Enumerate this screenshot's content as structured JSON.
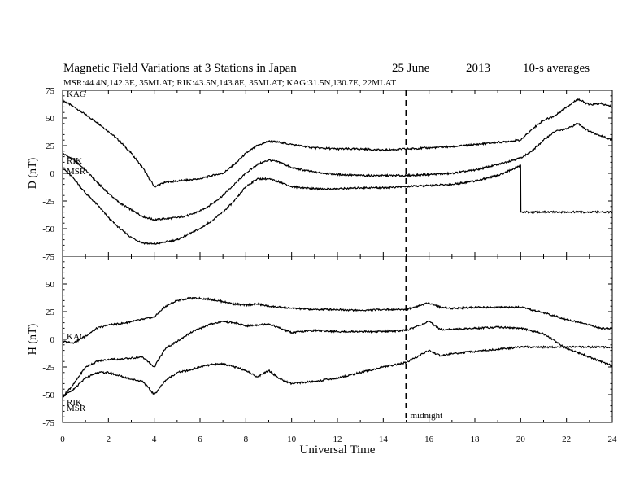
{
  "header": {
    "title": "Magnetic Field Variations at 3 Stations in Japan",
    "date": "25 June",
    "year": "2013",
    "resolution": "10-s averages",
    "station_line": "MSR:44.4N,142.3E, 35MLAT;   RIK:43.5N,143.8E, 35MLAT;   KAG:31.5N,130.7E, 22MLAT"
  },
  "chart_data": [
    {
      "type": "line",
      "panel": "D",
      "ylabel": "D (nT)",
      "ylim": [
        -75,
        75
      ],
      "yticks": [
        "75",
        "50",
        "25",
        "0",
        "-25",
        "-50",
        "-75"
      ],
      "xlim": [
        0,
        24
      ],
      "series": [
        {
          "name": "KAG",
          "x": [
            0,
            0.5,
            1,
            1.5,
            2,
            2.5,
            3,
            3.5,
            4,
            4.5,
            5,
            5.5,
            6,
            6.5,
            7,
            7.5,
            8,
            8.5,
            9,
            9.5,
            10,
            11,
            12,
            13,
            14,
            15,
            16,
            17,
            18,
            19,
            20,
            20.5,
            21,
            21.5,
            22,
            22.5,
            23,
            23.5,
            24
          ],
          "y": [
            66,
            60,
            53,
            46,
            38,
            29,
            18,
            5,
            -12,
            -8,
            -7,
            -6,
            -5,
            -2,
            0,
            8,
            18,
            25,
            29,
            28,
            26,
            23,
            22,
            22,
            21,
            22,
            23,
            24,
            26,
            28,
            30,
            40,
            48,
            52,
            60,
            67,
            62,
            63,
            60
          ]
        },
        {
          "name": "RIK",
          "x": [
            0,
            0.5,
            1,
            1.5,
            2,
            2.5,
            3,
            3.5,
            4,
            4.5,
            5,
            5.5,
            6,
            6.5,
            7,
            7.5,
            8,
            8.5,
            9,
            9.5,
            10,
            11,
            12,
            13,
            14,
            15,
            16,
            17,
            18,
            19,
            20,
            20.5,
            21,
            21.5,
            22,
            22.5,
            23,
            23.5,
            24
          ],
          "y": [
            18,
            12,
            3,
            -8,
            -18,
            -27,
            -33,
            -39,
            -42,
            -41,
            -40,
            -38,
            -34,
            -28,
            -20,
            -10,
            0,
            8,
            12,
            10,
            5,
            1,
            -1,
            -2,
            -2,
            -2,
            -1,
            0,
            3,
            8,
            14,
            20,
            30,
            38,
            40,
            45,
            38,
            34,
            30
          ]
        },
        {
          "name": "MSR",
          "x": [
            0,
            0.5,
            1,
            1.5,
            2,
            2.5,
            3,
            3.5,
            4,
            4.5,
            5,
            5.5,
            6,
            6.5,
            7,
            7.5,
            8,
            8.5,
            9,
            9.5,
            10,
            11,
            12,
            13,
            14,
            15,
            16,
            17,
            18,
            19,
            20,
            20.01,
            24
          ],
          "y": [
            5,
            -5,
            -18,
            -28,
            -40,
            -50,
            -58,
            -63,
            -64,
            -62,
            -60,
            -55,
            -50,
            -43,
            -35,
            -25,
            -12,
            -5,
            -5,
            -8,
            -12,
            -14,
            -14,
            -13,
            -13,
            -12,
            -11,
            -10,
            -7,
            -2,
            7,
            -35,
            -35
          ]
        }
      ]
    },
    {
      "type": "line",
      "panel": "H",
      "ylabel": "H (nT)",
      "ylim": [
        -75,
        75
      ],
      "yticks": [
        "75",
        "50",
        "25",
        "0",
        "-25",
        "-50",
        "-75"
      ],
      "xlim": [
        0,
        24
      ],
      "xlabel": "Universal Time",
      "xticks": [
        "0",
        "2",
        "4",
        "6",
        "8",
        "10",
        "12",
        "14",
        "16",
        "18",
        "20",
        "22",
        "24"
      ],
      "annotation": "midnight",
      "marker_x": 15,
      "series": [
        {
          "name": "KAG",
          "x": [
            0,
            0.5,
            1,
            1.5,
            2,
            2.5,
            3,
            3.5,
            4,
            4.5,
            5,
            5.5,
            6,
            6.5,
            7,
            7.5,
            8,
            8.5,
            9,
            9.5,
            10,
            11,
            12,
            13,
            14,
            15,
            16,
            16.5,
            17,
            18,
            19,
            20,
            21,
            22,
            23,
            23.5,
            24
          ],
          "y": [
            -2,
            -3,
            3,
            10,
            13,
            14,
            16,
            18,
            20,
            30,
            35,
            37,
            37,
            36,
            34,
            32,
            31,
            32,
            30,
            29,
            28,
            27,
            27,
            26,
            27,
            27,
            33,
            29,
            28,
            29,
            29,
            29,
            24,
            18,
            13,
            10,
            10
          ]
        },
        {
          "name": "RIK",
          "x": [
            0,
            0.5,
            1,
            1.5,
            2,
            2.5,
            3,
            3.5,
            4,
            4.5,
            5,
            5.5,
            6,
            6.5,
            7,
            7.5,
            8,
            8.5,
            9,
            9.5,
            10,
            11,
            12,
            13,
            14,
            15,
            16,
            16.5,
            17,
            18,
            19,
            20,
            21,
            22,
            23,
            24
          ],
          "y": [
            -52,
            -40,
            -25,
            -20,
            -18,
            -18,
            -17,
            -16,
            -25,
            -8,
            -2,
            5,
            10,
            14,
            16,
            15,
            12,
            13,
            14,
            10,
            6,
            8,
            7,
            7,
            7,
            8,
            16,
            9,
            9,
            10,
            11,
            10,
            5,
            -8,
            -16,
            -24
          ]
        },
        {
          "name": "MSR",
          "x": [
            0,
            0.5,
            1,
            1.5,
            2,
            2.5,
            3,
            3.5,
            4,
            4.5,
            5,
            5.5,
            6,
            6.5,
            7,
            7.5,
            8,
            8.5,
            9,
            9.5,
            10,
            11,
            12,
            13,
            14,
            15,
            16,
            16.5,
            17,
            18,
            19,
            20,
            24
          ],
          "y": [
            -52,
            -45,
            -35,
            -30,
            -30,
            -33,
            -36,
            -38,
            -50,
            -37,
            -30,
            -28,
            -25,
            -23,
            -22,
            -25,
            -28,
            -34,
            -28,
            -36,
            -40,
            -38,
            -35,
            -30,
            -25,
            -21,
            -10,
            -15,
            -13,
            -11,
            -9,
            -7,
            -7
          ]
        }
      ]
    }
  ]
}
